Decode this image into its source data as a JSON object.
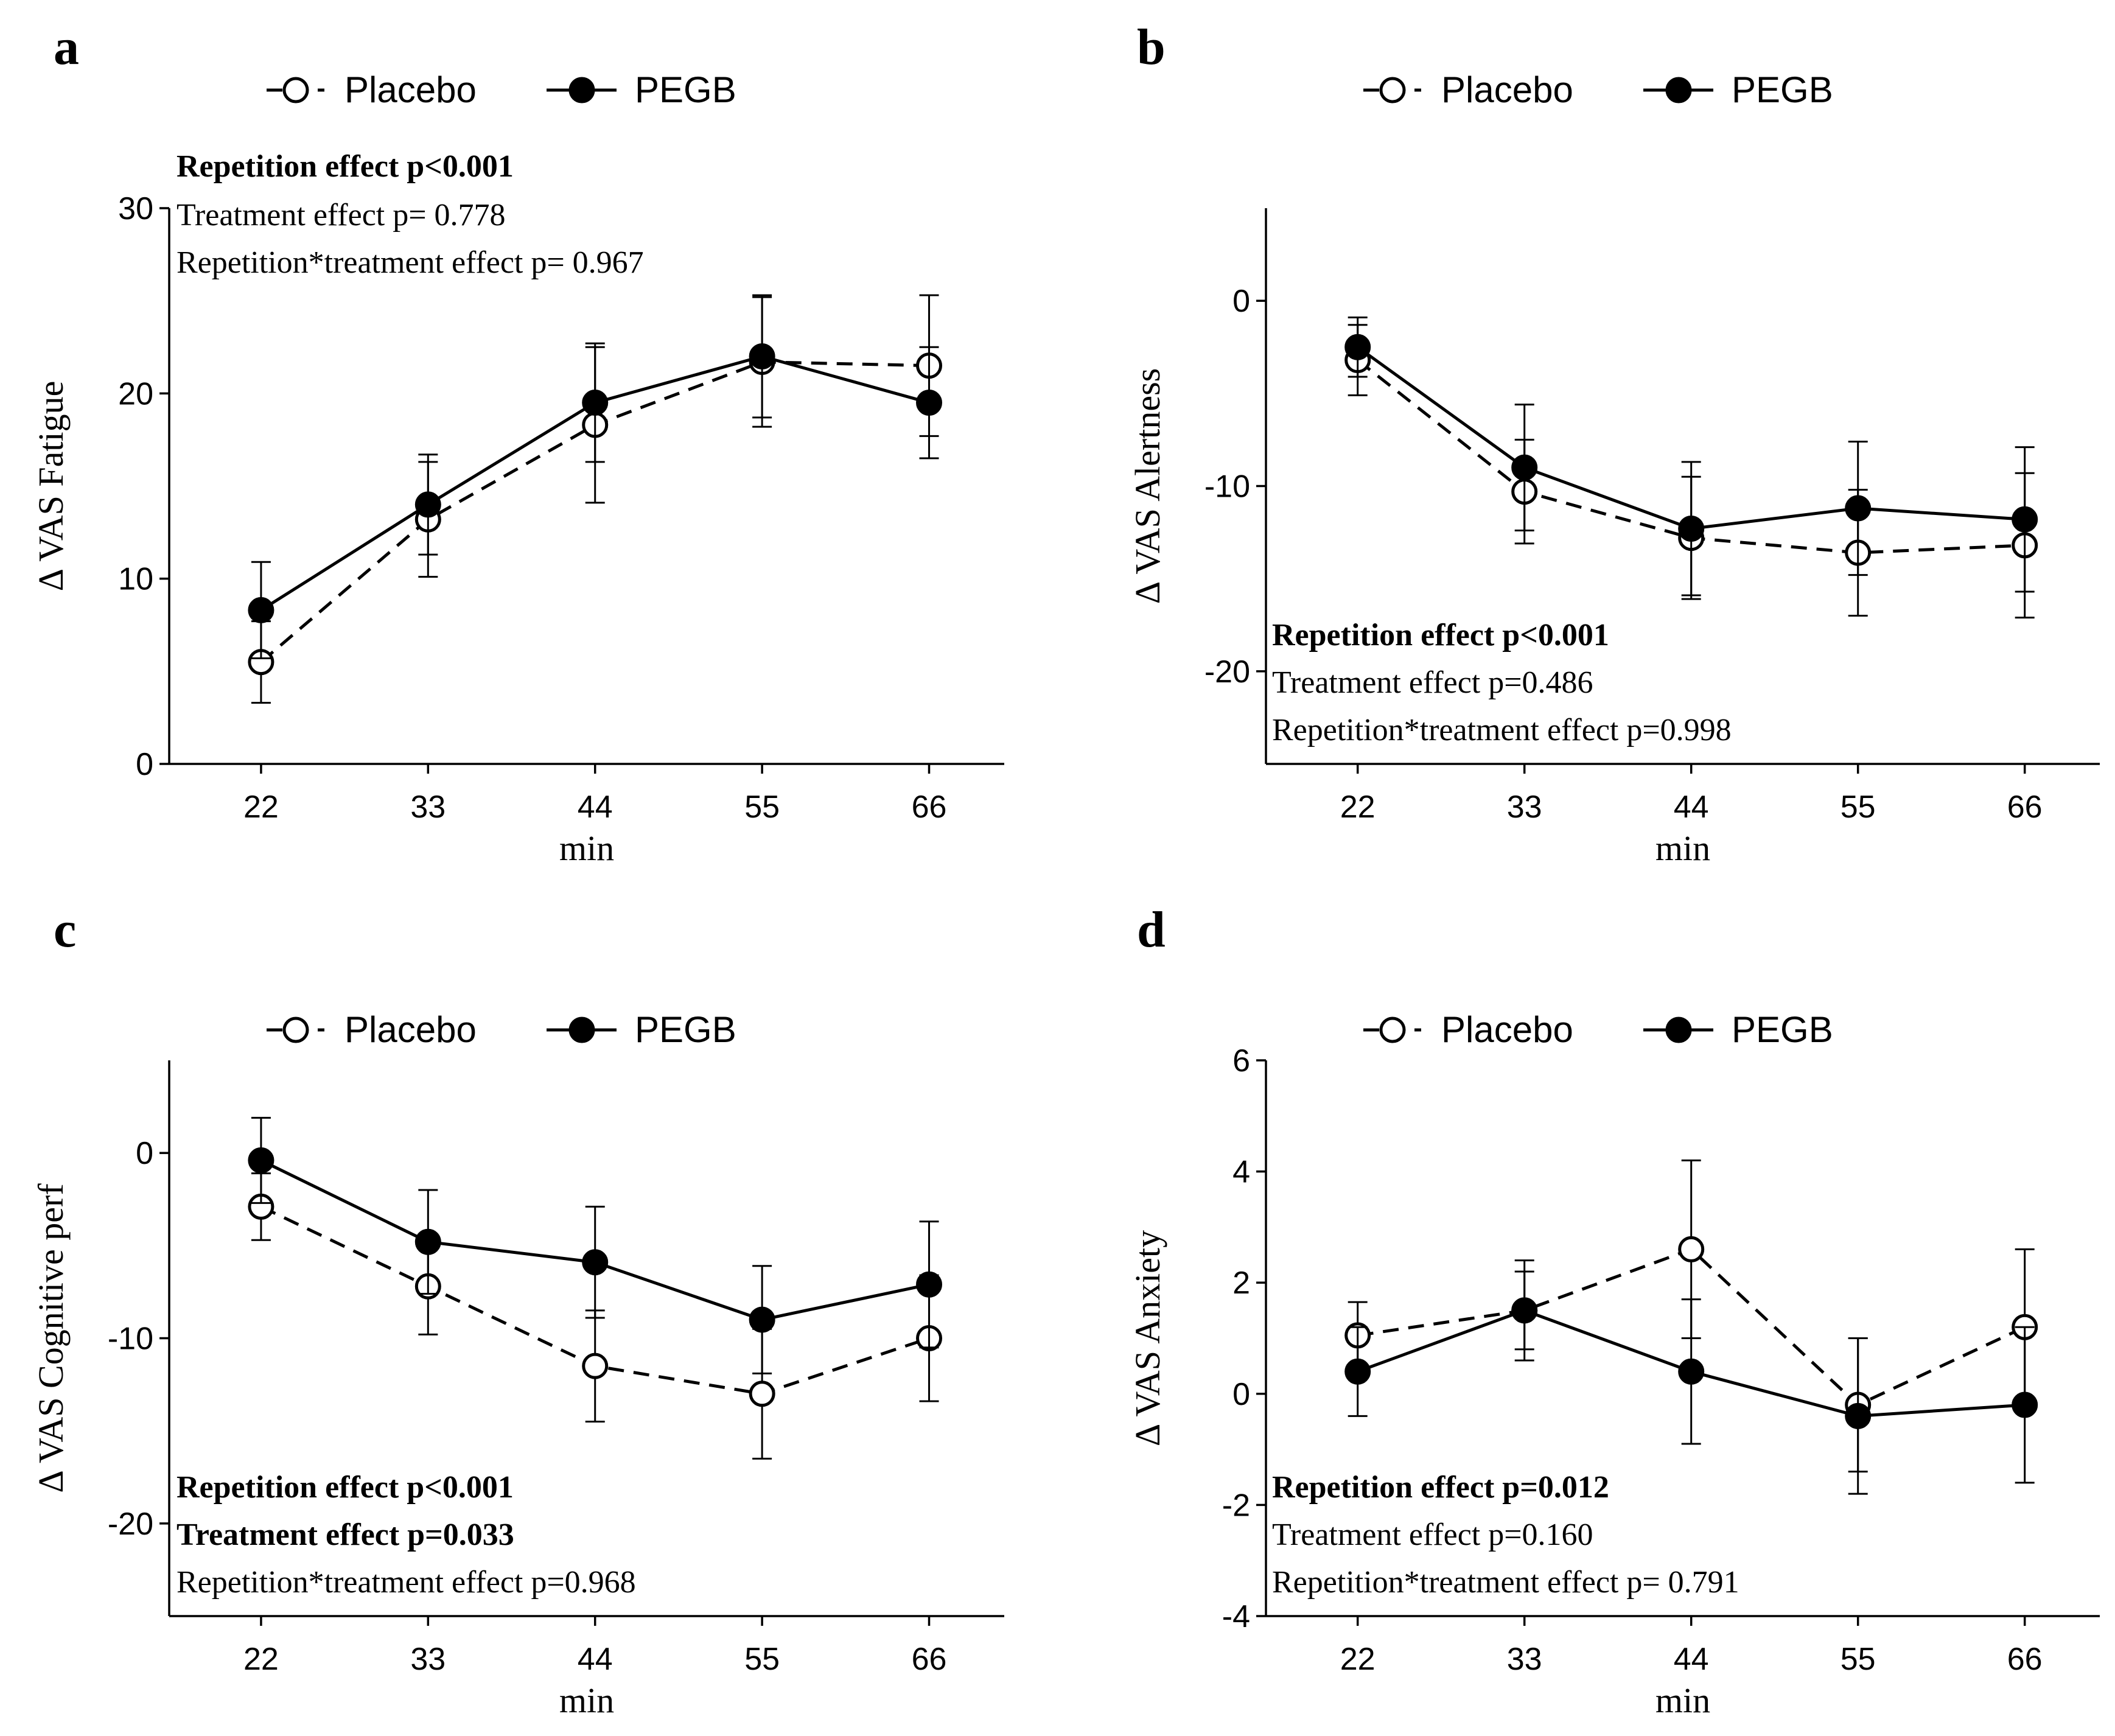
{
  "legend": {
    "placebo": "Placebo",
    "pegb": "PEGB"
  },
  "chart_data": [
    {
      "panel": "a",
      "type": "line",
      "xlabel": "min",
      "ylabel": "Δ VAS Fatigue",
      "categories": [
        "22",
        "33",
        "44",
        "55",
        "66"
      ],
      "ylim": [
        0,
        30
      ],
      "yticks": [
        "0",
        "10",
        "20",
        "30"
      ],
      "series": [
        {
          "name": "Placebo",
          "values": [
            5.5,
            13.2,
            18.3,
            21.7,
            21.5
          ],
          "err": [
            2.2,
            3.1,
            4.2,
            3.5,
            3.8
          ]
        },
        {
          "name": "PEGB",
          "values": [
            8.3,
            14.0,
            19.5,
            22.0,
            19.5
          ],
          "err": [
            2.6,
            2.7,
            3.2,
            3.3,
            3.0
          ]
        }
      ],
      "annotations": [
        {
          "text": "Repetition effect p<0.001",
          "bold": true
        },
        {
          "text": "Treatment effect p= 0.778",
          "bold": false
        },
        {
          "text": "Repetition*treatment effect p= 0.967",
          "bold": false
        }
      ]
    },
    {
      "panel": "b",
      "type": "line",
      "xlabel": "min",
      "ylabel": "Δ VAS Alertness",
      "categories": [
        "22",
        "33",
        "44",
        "55",
        "66"
      ],
      "ylim": [
        -25,
        5
      ],
      "yticks": [
        "-20",
        "-10",
        "0"
      ],
      "series": [
        {
          "name": "Placebo",
          "values": [
            -3.2,
            -10.3,
            -12.8,
            -13.6,
            -13.2
          ],
          "err": [
            1.9,
            2.8,
            3.3,
            3.4,
            3.9
          ]
        },
        {
          "name": "PEGB",
          "values": [
            -2.5,
            -9.0,
            -12.3,
            -11.2,
            -11.8
          ],
          "err": [
            1.6,
            3.4,
            3.6,
            3.6,
            3.9
          ]
        }
      ],
      "annotations": [
        {
          "text": "Repetition effect p<0.001",
          "bold": true
        },
        {
          "text": "Treatment effect p=0.486",
          "bold": false
        },
        {
          "text": "Repetition*treatment effect p=0.998",
          "bold": false
        }
      ]
    },
    {
      "panel": "c",
      "type": "line",
      "xlabel": "min",
      "ylabel": "Δ VAS Cognitive perf",
      "categories": [
        "22",
        "33",
        "44",
        "55",
        "66"
      ],
      "ylim": [
        -25,
        5
      ],
      "yticks": [
        "-20",
        "-10",
        "0"
      ],
      "series": [
        {
          "name": "Placebo",
          "values": [
            -2.9,
            -7.2,
            -11.5,
            -13.0,
            -10.0
          ],
          "err": [
            1.8,
            2.6,
            3.0,
            3.5,
            3.4
          ]
        },
        {
          "name": "PEGB",
          "values": [
            -0.4,
            -4.8,
            -5.9,
            -9.0,
            -7.1
          ],
          "err": [
            2.3,
            2.8,
            3.0,
            2.9,
            3.4
          ]
        }
      ],
      "annotations": [
        {
          "text": "Repetition effect p<0.001",
          "bold": true
        },
        {
          "text": "Treatment effect p=0.033",
          "bold": true
        },
        {
          "text": "Repetition*treatment effect p=0.968",
          "bold": false
        }
      ]
    },
    {
      "panel": "d",
      "type": "line",
      "xlabel": "min",
      "ylabel": "Δ VAS Anxiety",
      "categories": [
        "22",
        "33",
        "44",
        "55",
        "66"
      ],
      "ylim": [
        -4,
        6
      ],
      "yticks": [
        "-4",
        "-2",
        "0",
        "2",
        "4",
        "6"
      ],
      "series": [
        {
          "name": "Placebo",
          "values": [
            1.05,
            1.5,
            2.6,
            -0.2,
            1.2
          ],
          "err": [
            0.6,
            0.9,
            1.6,
            1.2,
            1.4
          ]
        },
        {
          "name": "PEGB",
          "values": [
            0.4,
            1.5,
            0.4,
            -0.4,
            -0.2
          ],
          "err": [
            0.8,
            0.7,
            1.3,
            1.4,
            1.4
          ]
        }
      ],
      "annotations": [
        {
          "text": "Repetition effect p=0.012",
          "bold": true
        },
        {
          "text": "Treatment effect p=0.160",
          "bold": false
        },
        {
          "text": "Repetition*treatment effect p= 0.791",
          "bold": false
        }
      ]
    }
  ]
}
